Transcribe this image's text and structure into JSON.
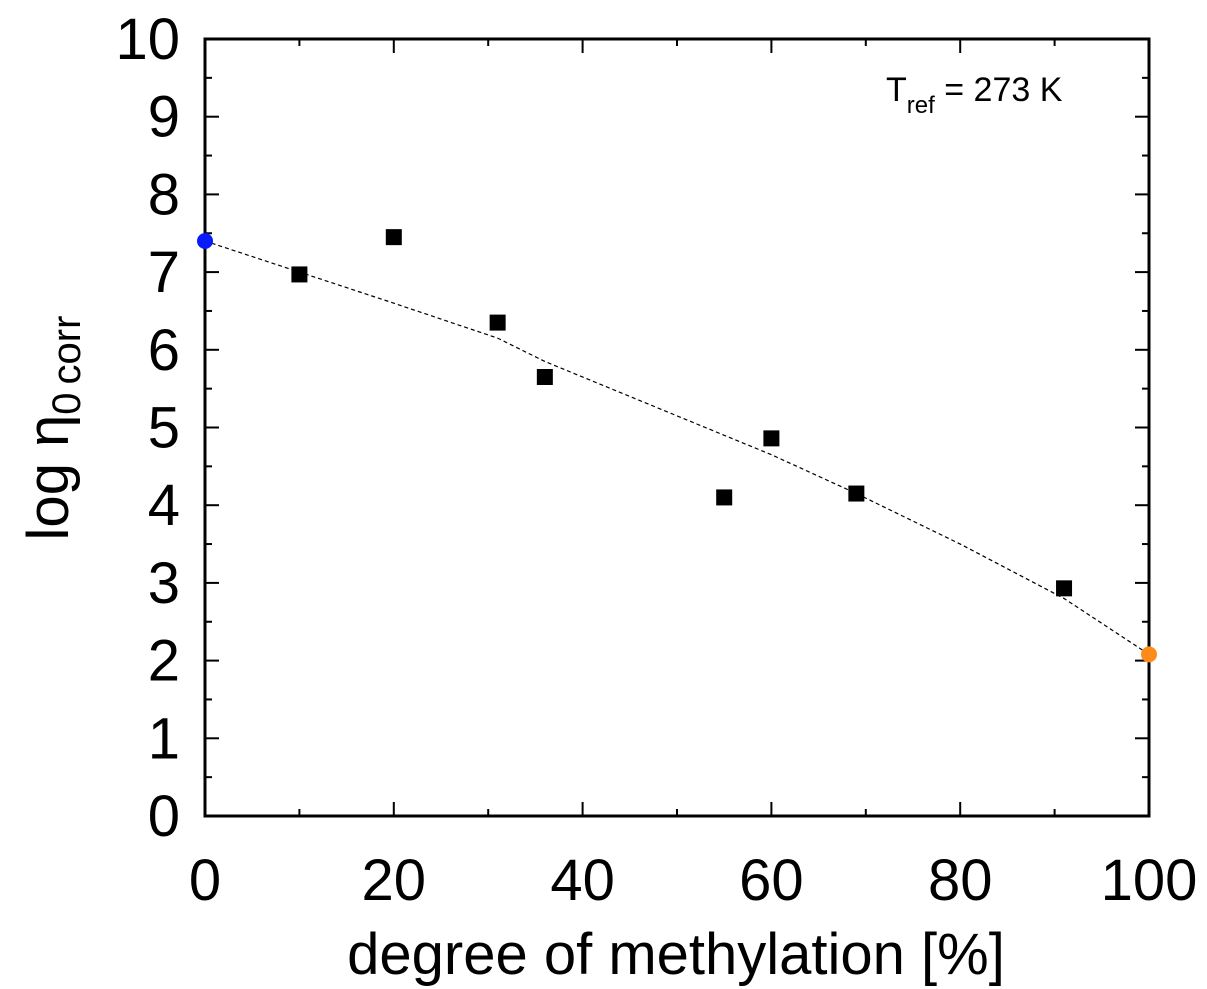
{
  "chart_data": {
    "type": "scatter",
    "xlabel": "degree of methylation [%]",
    "ylabel": {
      "main": "log η",
      "subscript_zero": "0",
      "subscript_corr": "corr"
    },
    "annotation": {
      "T": "T",
      "sub": "ref",
      "rest": " = 273 K"
    },
    "xlim": [
      0,
      100
    ],
    "ylim": [
      0,
      10
    ],
    "x_ticks": [
      0,
      20,
      40,
      60,
      80,
      100
    ],
    "y_ticks": [
      0,
      1,
      2,
      3,
      4,
      5,
      6,
      7,
      8,
      9,
      10
    ],
    "x_tick_labels": [
      "0",
      "20",
      "40",
      "60",
      "80",
      "100"
    ],
    "y_tick_labels": [
      "0",
      "1",
      "2",
      "3",
      "4",
      "5",
      "6",
      "7",
      "8",
      "9",
      "10"
    ],
    "series": [
      {
        "marker": "square",
        "color": "#000000",
        "x": [
          10,
          20,
          31,
          36,
          55,
          60,
          69,
          91
        ],
        "y": [
          6.97,
          7.45,
          6.35,
          5.65,
          4.1,
          4.86,
          4.15,
          2.93
        ]
      },
      {
        "marker": "circle",
        "color": "#0a1aff",
        "x": [
          0
        ],
        "y": [
          7.4
        ]
      },
      {
        "marker": "circle",
        "color": "#ff8c1a",
        "x": [
          100
        ],
        "y": [
          2.08
        ]
      }
    ],
    "fit_line": {
      "style": "dashed",
      "color": "#000000",
      "x": [
        0,
        10,
        20,
        31,
        36,
        45,
        55,
        60,
        69,
        80,
        91,
        100
      ],
      "y": [
        7.4,
        7.0,
        6.6,
        6.15,
        5.85,
        5.4,
        4.9,
        4.65,
        4.15,
        3.5,
        2.8,
        2.08
      ]
    },
    "grid": false
  }
}
